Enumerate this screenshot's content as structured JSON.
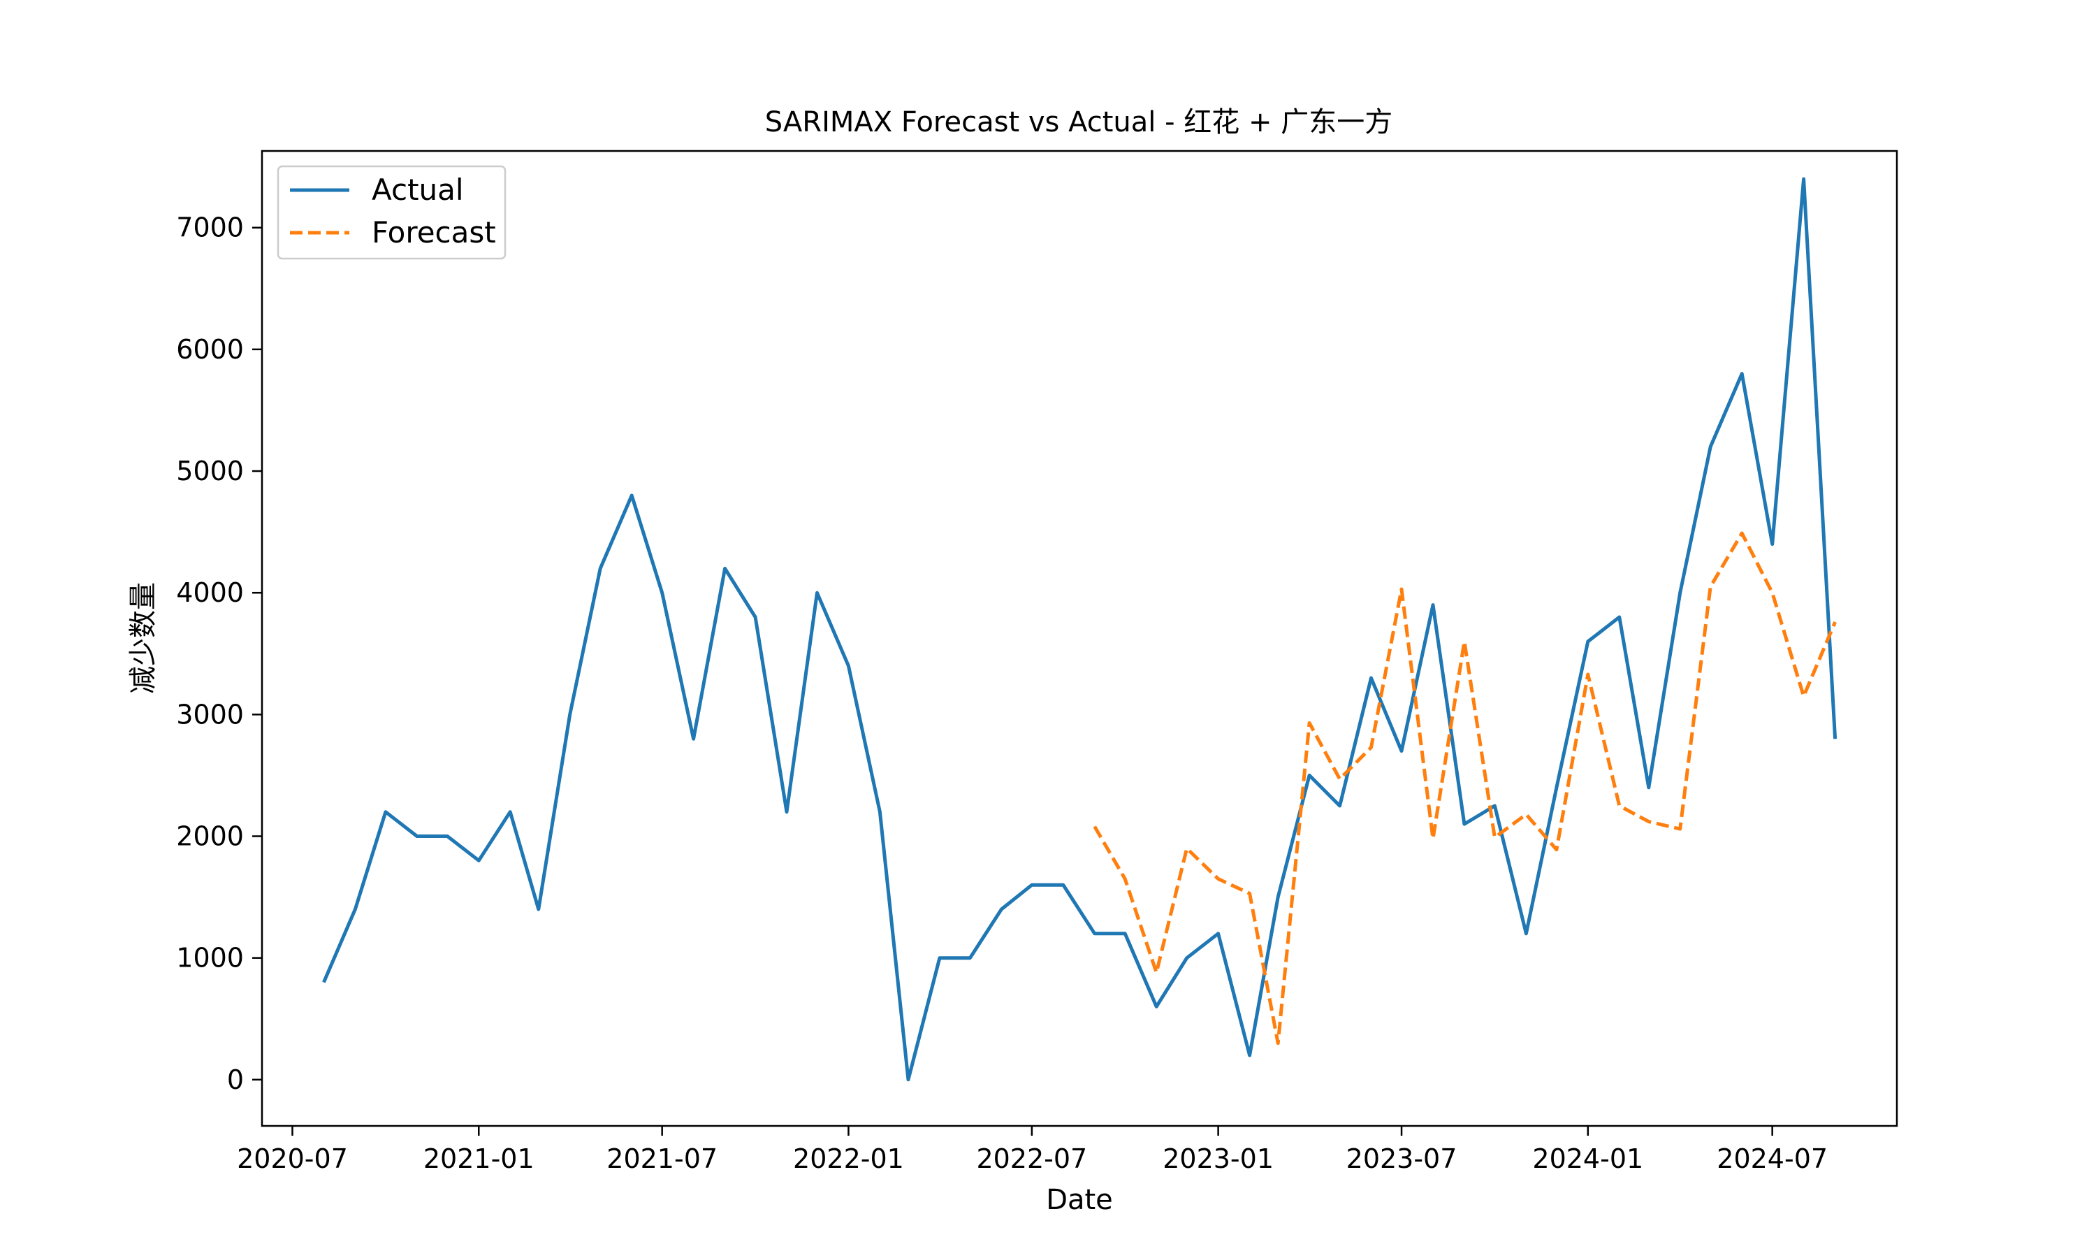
{
  "chart_data": {
    "type": "line",
    "title": "SARIMAX Forecast vs Actual - 红花 + 广东一方",
    "xlabel": "Date",
    "ylabel": "减少数量",
    "xlim": [
      "2020-06-01",
      "2024-11-01"
    ],
    "ylim": [
      -380,
      7630
    ],
    "x_ticks": [
      "2020-07",
      "2021-01",
      "2021-07",
      "2022-01",
      "2022-07",
      "2023-01",
      "2023-07",
      "2024-01",
      "2024-07"
    ],
    "y_ticks": [
      0,
      1000,
      2000,
      3000,
      4000,
      5000,
      6000,
      7000
    ],
    "grid": false,
    "legend_position": "top-left",
    "series": [
      {
        "name": "Actual",
        "color": "#1f77b4",
        "style": "solid",
        "x": [
          "2020-08",
          "2020-09",
          "2020-10",
          "2020-11",
          "2020-12",
          "2021-01",
          "2021-02",
          "2021-03",
          "2021-04",
          "2021-05",
          "2021-06",
          "2021-07",
          "2021-08",
          "2021-09",
          "2021-10",
          "2021-11",
          "2021-12",
          "2022-01",
          "2022-02",
          "2022-03",
          "2022-04",
          "2022-05",
          "2022-06",
          "2022-07",
          "2022-08",
          "2022-09",
          "2022-10",
          "2022-11",
          "2022-12",
          "2023-01",
          "2023-02",
          "2023-03",
          "2023-04",
          "2023-05",
          "2023-06",
          "2023-07",
          "2023-08",
          "2023-09",
          "2023-10",
          "2023-11",
          "2023-12",
          "2024-01",
          "2024-02",
          "2024-03",
          "2024-04",
          "2024-05",
          "2024-06",
          "2024-07",
          "2024-08",
          "2024-09"
        ],
        "y": [
          800,
          1400,
          2200,
          2000,
          2000,
          1800,
          2200,
          1400,
          3000,
          4200,
          4800,
          4000,
          2800,
          4200,
          3800,
          2200,
          4000,
          3400,
          2200,
          0,
          1000,
          1000,
          1400,
          1600,
          1600,
          1200,
          1200,
          600,
          1000,
          1200,
          200,
          1500,
          2500,
          2250,
          3300,
          2700,
          3900,
          2100,
          2250,
          1200,
          2400,
          3600,
          3800,
          2400,
          4000,
          5200,
          5800,
          4400,
          7400,
          2800
        ]
      },
      {
        "name": "Forecast",
        "color": "#ff7f0e",
        "style": "dashed",
        "x": [
          "2022-09",
          "2022-10",
          "2022-11",
          "2022-12",
          "2023-01",
          "2023-02",
          "2023-03",
          "2023-04",
          "2023-05",
          "2023-06",
          "2023-07",
          "2023-08",
          "2023-09",
          "2023-10",
          "2023-11",
          "2023-12",
          "2024-01",
          "2024-02",
          "2024-03",
          "2024-04",
          "2024-05",
          "2024-06",
          "2024-07",
          "2024-08",
          "2024-09"
        ],
        "y": [
          2080,
          1650,
          880,
          1900,
          1650,
          1530,
          300,
          2930,
          2470,
          2730,
          4030,
          1980,
          3600,
          1990,
          2180,
          1890,
          3330,
          2250,
          2120,
          2060,
          4050,
          4490,
          4000,
          3150,
          3760
        ]
      }
    ]
  }
}
